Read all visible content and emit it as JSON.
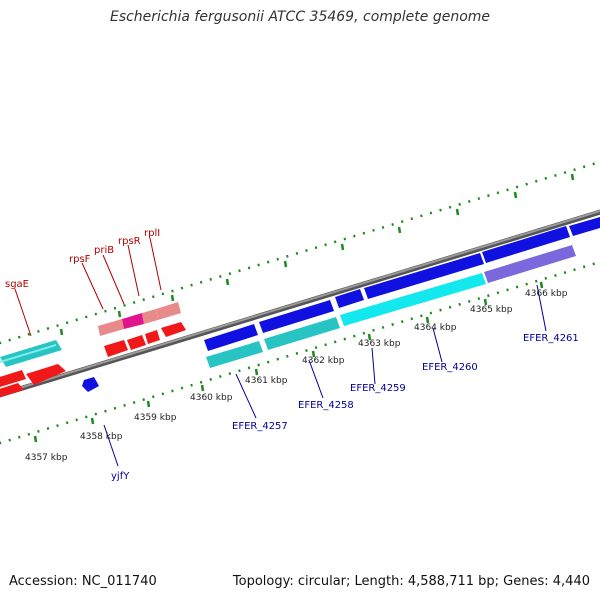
{
  "title": "Escherichia fergusonii ATCC 35469, complete genome",
  "footer": {
    "accession": "Accession: NC_011740",
    "summary": "Topology: circular; Length: 4,588,711 bp; Genes: 4,440"
  },
  "scale_labels": [
    "4357 kbp",
    "4358 kbp",
    "4359 kbp",
    "4360 kbp",
    "4361 kbp",
    "4362 kbp",
    "4363 kbp",
    "4364 kbp",
    "4365 kbp",
    "4366 kbp"
  ],
  "gene_labels_top": [
    "sgaE",
    "rpsF",
    "priB",
    "rpsR",
    "rplI"
  ],
  "gene_labels_bottom": [
    "yjfY",
    "EFER_4257",
    "EFER_4258",
    "EFER_4259",
    "EFER_4260",
    "EFER_4261"
  ],
  "colors": {
    "backbone": "#7f7f7f",
    "tick": "#1e8a1e",
    "label_top": "#b30000",
    "label_bottom": "#000099",
    "gene_red": "#f01818",
    "gene_pink": "#e98a8a",
    "gene_magenta": "#e0148c",
    "gene_blue": "#1010e0",
    "gene_cyan": "#28c4c4",
    "gene_aqua": "#12e8ee",
    "gene_purple": "#7b68dd"
  }
}
